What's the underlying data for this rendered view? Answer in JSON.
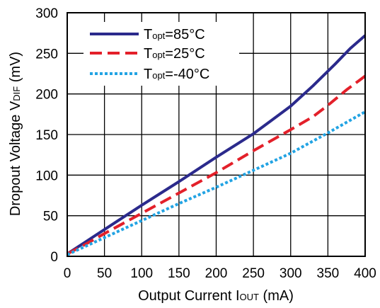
{
  "chart_data": {
    "type": "line",
    "title": "",
    "xlabel": {
      "main": "Output Current I",
      "sub": "OUT",
      "unit": " (mA)"
    },
    "ylabel": {
      "main": "Dropout Voltage V",
      "sub": "DIF",
      "unit": " (mV)"
    },
    "xlim": [
      0,
      400
    ],
    "ylim": [
      0,
      300
    ],
    "x_ticks": [
      "0",
      "50",
      "100",
      "150",
      "200",
      "250",
      "300",
      "350",
      "400"
    ],
    "y_ticks": [
      "0",
      "50",
      "100",
      "150",
      "200",
      "250",
      "300"
    ],
    "grid": true,
    "legend_position": "top-left",
    "series": [
      {
        "name": "Topt=85°C",
        "legend": {
          "t": "T",
          "sub": "opt",
          "rest": "=85°C"
        },
        "color": "#2b2a8c",
        "style": "solid",
        "x": [
          0,
          25,
          50,
          100,
          150,
          200,
          250,
          300,
          330,
          360,
          380,
          390,
          400
        ],
        "y": [
          3,
          18,
          33,
          63,
          92,
          122,
          151,
          185,
          210,
          237,
          256,
          264,
          272
        ]
      },
      {
        "name": "Topt=25°C",
        "legend": {
          "t": "T",
          "sub": "opt",
          "rest": "=25°C"
        },
        "color": "#e3202a",
        "style": "dashed",
        "x": [
          0,
          25,
          50,
          100,
          150,
          200,
          250,
          300,
          330,
          350,
          375,
          400
        ],
        "y": [
          3,
          15,
          28,
          53,
          78,
          103,
          130,
          156,
          172,
          186,
          205,
          222
        ]
      },
      {
        "name": "Topt=-40°C",
        "legend": {
          "t": "T",
          "sub": "opt",
          "rest": "=-40°C"
        },
        "color": "#22a3e3",
        "style": "dotted",
        "x": [
          0,
          50,
          100,
          150,
          200,
          250,
          300,
          350,
          400
        ],
        "y": [
          2,
          23,
          44,
          65,
          85,
          106,
          127,
          152,
          178
        ]
      }
    ]
  }
}
